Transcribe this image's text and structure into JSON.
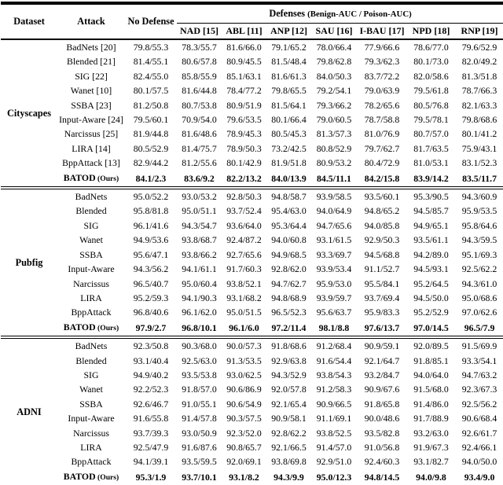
{
  "table": {
    "header": {
      "dataset": "Dataset",
      "attack": "Attack",
      "no_defense": "No Defense",
      "defenses_title": "Defenses",
      "defenses_subtitle": "(Benign-AUC / Poison-AUC)",
      "defense_columns": [
        "NAD [15]",
        "ABL [11]",
        "ANP [12]",
        "SAU [16]",
        "I-BAU [17]",
        "NPD [18]",
        "RNP [19]"
      ]
    },
    "text_color": "#000000",
    "background_color": "#ffffff",
    "sections": [
      {
        "dataset": "Cityscapes",
        "rows": [
          {
            "attack": "BadNets [20]",
            "bold": false,
            "values": [
              "79.8/55.3",
              "78.3/55.7",
              "81.6/66.0",
              "79.1/65.2",
              "78.0/66.4",
              "77.9/66.6",
              "78.6/77.0",
              "79.6/52.9"
            ]
          },
          {
            "attack": "Blended [21]",
            "bold": false,
            "values": [
              "81.4/55.1",
              "80.6/57.8",
              "80.9/45.5",
              "81.5/48.4",
              "79.8/62.8",
              "79.3/62.3",
              "80.1/73.0",
              "82.0/49.2"
            ]
          },
          {
            "attack": "SIG [22]",
            "bold": false,
            "values": [
              "82.4/55.0",
              "85.8/55.9",
              "85.1/63.1",
              "81.6/61.3",
              "84.0/50.3",
              "83.7/72.2",
              "82.0/58.6",
              "81.3/51.8"
            ]
          },
          {
            "attack": "Wanet [10]",
            "bold": false,
            "values": [
              "80.1/57.5",
              "81.6/44.8",
              "78.4/77.2",
              "79.8/65.5",
              "79.2/54.1",
              "79.0/63.9",
              "79.5/61.8",
              "78.7/66.3"
            ]
          },
          {
            "attack": "SSBA [23]",
            "bold": false,
            "values": [
              "81.2/50.8",
              "80.7/53.8",
              "80.9/51.9",
              "81.5/64.1",
              "79.3/66.2",
              "78.2/65.6",
              "80.5/76.8",
              "82.1/63.3"
            ]
          },
          {
            "attack": "Input-Aware [24]",
            "bold": false,
            "values": [
              "79.5/60.1",
              "70.9/54.0",
              "79.6/53.5",
              "80.1/66.4",
              "79.0/60.5",
              "78.7/58.8",
              "79.5/78.1",
              "79.8/68.6"
            ]
          },
          {
            "attack": "Narcissus [25]",
            "bold": false,
            "values": [
              "81.9/44.8",
              "81.6/48.6",
              "78.9/45.3",
              "80.5/45.3",
              "81.3/57.3",
              "81.0/76.9",
              "80.7/57.0",
              "80.1/41.2"
            ]
          },
          {
            "attack": "LIRA [14]",
            "bold": false,
            "values": [
              "80.5/52.9",
              "81.4/75.7",
              "78.9/50.3",
              "73.2/42.5",
              "80.8/52.9",
              "79.7/62.7",
              "81.7/63.5",
              "75.9/43.1"
            ]
          },
          {
            "attack": "BppAttack [13]",
            "bold": false,
            "values": [
              "82.9/44.2",
              "81.2/55.6",
              "80.1/42.9",
              "81.9/51.8",
              "80.9/53.2",
              "80.4/72.9",
              "81.0/53.1",
              "83.1/52.3"
            ]
          },
          {
            "attack": "BATOD",
            "attack_note": "(Ours)",
            "bold": true,
            "values": [
              "84.1/2.3",
              "83.6/9.2",
              "82.2/13.2",
              "84.0/13.9",
              "84.5/11.1",
              "84.2/15.8",
              "83.9/14.2",
              "83.5/11.7"
            ]
          }
        ]
      },
      {
        "dataset": "Pubfig",
        "rows": [
          {
            "attack": "BadNets",
            "bold": false,
            "values": [
              "95.0/52.2",
              "93.0/53.2",
              "92.8/50.3",
              "94.8/58.7",
              "93.9/58.5",
              "93.5/60.1",
              "95.3/90.5",
              "94.3/60.9"
            ]
          },
          {
            "attack": "Blended",
            "bold": false,
            "values": [
              "95.8/81.8",
              "95.0/51.1",
              "93.7/52.4",
              "95.4/63.0",
              "94.0/64.9",
              "94.8/65.2",
              "94.5/85.7",
              "95.9/53.5"
            ]
          },
          {
            "attack": "SIG",
            "bold": false,
            "values": [
              "96.1/41.6",
              "94.3/54.7",
              "93.6/64.0",
              "95.3/64.4",
              "94.7/65.6",
              "94.0/85.8",
              "94.9/65.1",
              "95.8/64.6"
            ]
          },
          {
            "attack": "Wanet",
            "bold": false,
            "values": [
              "94.9/53.6",
              "93.8/68.7",
              "92.4/87.2",
              "94.0/60.8",
              "93.1/61.5",
              "92.9/50.3",
              "93.5/61.1",
              "94.3/59.5"
            ]
          },
          {
            "attack": "SSBA",
            "bold": false,
            "values": [
              "95.6/47.1",
              "93.8/66.2",
              "92.7/65.6",
              "94.9/68.5",
              "93.3/69.7",
              "94.5/68.8",
              "94.2/89.0",
              "95.1/69.3"
            ]
          },
          {
            "attack": "Input-Aware",
            "bold": false,
            "values": [
              "94.3/56.2",
              "94.1/61.1",
              "91.7/60.3",
              "92.8/62.0",
              "93.9/53.4",
              "91.1/52.7",
              "94.5/93.1",
              "92.5/62.2"
            ]
          },
          {
            "attack": "Narcissus",
            "bold": false,
            "values": [
              "96.5/40.7",
              "95.0/60.4",
              "93.8/52.1",
              "94.7/62.7",
              "95.9/53.0",
              "95.5/84.1",
              "95.2/64.5",
              "94.3/61.0"
            ]
          },
          {
            "attack": "LIRA",
            "bold": false,
            "values": [
              "95.2/59.3",
              "94.1/90.3",
              "93.1/68.2",
              "94.8/68.9",
              "93.9/59.7",
              "93.7/69.4",
              "94.5/50.0",
              "95.0/68.6"
            ]
          },
          {
            "attack": "BppAttack",
            "bold": false,
            "values": [
              "96.8/40.6",
              "96.1/62.0",
              "95.0/51.5",
              "96.5/52.3",
              "95.6/63.7",
              "95.9/83.3",
              "95.2/52.9",
              "97.0/62.6"
            ]
          },
          {
            "attack": "BATOD",
            "attack_note": "(Ours)",
            "bold": true,
            "values": [
              "97.9/2.7",
              "96.8/10.1",
              "96.1/6.0",
              "97.2/11.4",
              "98.1/8.8",
              "97.6/13.7",
              "97.0/14.5",
              "96.5/7.9"
            ]
          }
        ]
      },
      {
        "dataset": "ADNI",
        "rows": [
          {
            "attack": "BadNets",
            "bold": false,
            "values": [
              "92.3/50.8",
              "90.3/68.0",
              "90.0/57.3",
              "91.8/68.6",
              "91.2/68.4",
              "90.9/59.1",
              "92.0/89.5",
              "91.5/69.9"
            ]
          },
          {
            "attack": "Blended",
            "bold": false,
            "values": [
              "93.1/40.4",
              "92.5/63.0",
              "91.3/53.5",
              "92.9/63.8",
              "91.6/54.4",
              "92.1/64.7",
              "91.8/85.1",
              "93.3/54.1"
            ]
          },
          {
            "attack": "SIG",
            "bold": false,
            "values": [
              "94.9/40.2",
              "93.5/53.8",
              "93.0/62.5",
              "94.3/52.9",
              "93.8/54.3",
              "93.2/84.7",
              "94.0/64.0",
              "94.7/63.2"
            ]
          },
          {
            "attack": "Wanet",
            "bold": false,
            "values": [
              "92.2/52.3",
              "91.8/57.0",
              "90.6/86.9",
              "92.0/57.8",
              "91.2/58.3",
              "90.9/67.6",
              "91.5/68.0",
              "92.3/67.3"
            ]
          },
          {
            "attack": "SSBA",
            "bold": false,
            "values": [
              "92.6/46.7",
              "91.0/55.1",
              "90.6/54.9",
              "92.1/65.4",
              "90.9/66.5",
              "91.8/65.8",
              "91.4/86.0",
              "92.5/56.2"
            ]
          },
          {
            "attack": "Input-Aware",
            "bold": false,
            "values": [
              "91.6/55.8",
              "91.4/57.8",
              "90.3/57.5",
              "90.9/58.1",
              "91.1/69.1",
              "90.0/48.6",
              "91.7/88.9",
              "90.6/68.4"
            ]
          },
          {
            "attack": "Narcissus",
            "bold": false,
            "values": [
              "93.7/39.3",
              "93.0/50.9",
              "92.3/52.0",
              "92.8/62.2",
              "93.8/52.5",
              "93.5/82.8",
              "93.2/63.0",
              "92.6/61.7"
            ]
          },
          {
            "attack": "LIRA",
            "bold": false,
            "values": [
              "92.5/47.9",
              "91.6/87.6",
              "90.8/65.7",
              "92.1/66.5",
              "91.4/57.0",
              "91.0/56.8",
              "91.9/67.3",
              "92.4/66.1"
            ]
          },
          {
            "attack": "BppAttack",
            "bold": false,
            "values": [
              "94.1/39.1",
              "93.5/59.5",
              "92.0/69.1",
              "93.8/69.8",
              "92.9/51.0",
              "92.4/60.3",
              "93.1/82.7",
              "94.0/50.0"
            ]
          },
          {
            "attack": "BATOD",
            "attack_note": "(Ours)",
            "bold": true,
            "values": [
              "95.3/1.9",
              "93.7/10.1",
              "93.1/8.2",
              "94.3/9.9",
              "95.0/12.3",
              "94.8/14.5",
              "94.0/9.8",
              "93.4/9.0"
            ]
          }
        ]
      }
    ]
  }
}
